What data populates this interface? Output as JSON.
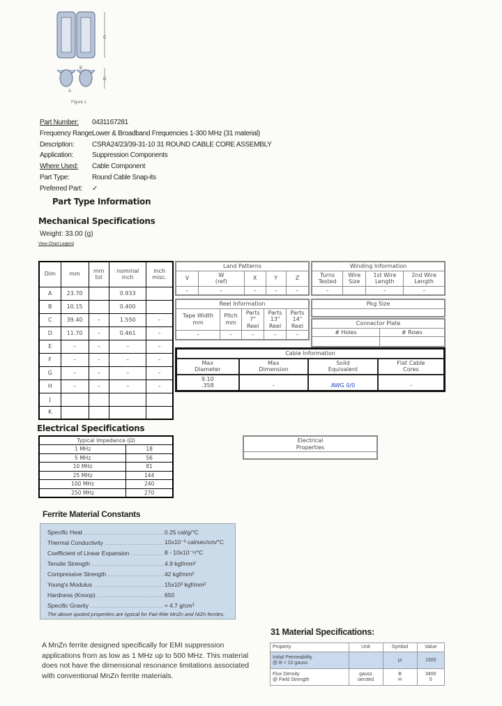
{
  "figure": {
    "caption": "Figure 1",
    "labels": [
      "C",
      "D",
      "B",
      "A"
    ]
  },
  "part_info": [
    {
      "label": "Part Number:",
      "value": "0431167281",
      "underline": true
    },
    {
      "label": "Frequency Range:",
      "value": "Lower & Broadband Frequencies 1-300 MHz (31 material)"
    },
    {
      "label": "Description:",
      "value": "CSRA24/23/39-31-10     31 ROUND CABLE CORE ASSEMBLY"
    },
    {
      "label": "Application:",
      "value": "Suppression Components"
    },
    {
      "label": "Where Used:",
      "value": "Cable Component",
      "underline": true
    },
    {
      "label": "Part Type:",
      "value": "Round Cable Snap-its"
    },
    {
      "label": "Preferred Part:",
      "value": "✓"
    }
  ],
  "part_type_heading": "Part Type Information",
  "mechanical": {
    "heading": "Mechanical Specifications",
    "weight": "Weight: 33.00 (g)",
    "legend_link": "View Chart Legend"
  },
  "dim_table": {
    "headers": [
      "Dim",
      "mm",
      "mm\ntol",
      "nominal\ninch",
      "inch\nmisc."
    ],
    "rows": [
      [
        "A",
        "23.70",
        "",
        "0.933",
        ""
      ],
      [
        "B",
        "10.15",
        "",
        "0.400",
        ""
      ],
      [
        "C",
        "39.40",
        "–",
        "1.550",
        "–"
      ],
      [
        "D",
        "11.70",
        "–",
        "0.461",
        "–"
      ],
      [
        "E",
        "–",
        "–",
        "–",
        "–"
      ],
      [
        "F",
        "–",
        "–",
        "–",
        "–"
      ],
      [
        "G",
        "–",
        "–",
        "–",
        "–"
      ],
      [
        "H",
        "–",
        "–",
        "–",
        "–"
      ],
      [
        "J",
        "",
        "",
        "",
        ""
      ],
      [
        "K",
        "",
        "",
        "",
        ""
      ]
    ]
  },
  "land_patterns": {
    "title": "Land Patterns",
    "headers": [
      "V",
      "W\n(ref)",
      "X",
      "Y",
      "Z"
    ],
    "row": [
      "–",
      "–",
      "–",
      "–",
      "–"
    ]
  },
  "winding": {
    "title": "Winding Information",
    "headers": [
      "Turns\nTested",
      "Wire\nSize",
      "1st Wire\nLength",
      "2nd Wire\nLength"
    ],
    "row": [
      "–",
      "",
      "–",
      "–"
    ]
  },
  "reel": {
    "title": "Reel Information",
    "headers": [
      "Tape Width\nmm",
      "Pitch\nmm",
      "Parts\n7\"\nReel",
      "Parts\n13\"\nReel",
      "Parts\n14\"\nReel"
    ],
    "row": [
      "–",
      "–",
      "–",
      "–",
      "–"
    ]
  },
  "pkg": {
    "title": "Pkg Size"
  },
  "connector": {
    "title": "Connector Plate",
    "headers": [
      "# Holes",
      "# Rows"
    ]
  },
  "cable": {
    "title": "Cable Information",
    "headers": [
      "Max\nDiameter",
      "Max\nDimension",
      "Solid\nEquivalent",
      "Flat Cable\nCores"
    ],
    "row": [
      "9.10\n.358",
      "–",
      "AWG 0/0",
      "–"
    ]
  },
  "electrical": {
    "heading": "Electrical Specifications",
    "impedance_title": "Typical Impedance (Ω)",
    "rows": [
      [
        "1 MHz",
        "18"
      ],
      [
        "5 MHz",
        "56"
      ],
      [
        "10 MHz",
        "81"
      ],
      [
        "25 MHz",
        "144"
      ],
      [
        "100 MHz",
        "240"
      ],
      [
        "250 MHz",
        "270"
      ]
    ],
    "properties_title": "Electrical\nProperties"
  },
  "ferrite": {
    "heading": "Ferrite Material Constants",
    "rows": [
      [
        "Specific Heat",
        "0.25 cal/g/°C"
      ],
      [
        "Thermal Conductivity",
        "10x10⁻³ cal/sec/cm/°C"
      ],
      [
        "Coefficient of Linear Expansion",
        "8 - 10x10⁻⁶/°C"
      ],
      [
        "Tensile Strength",
        "4.9 kgf/mm²"
      ],
      [
        "Compressive Strength",
        "42 kgf/mm²"
      ],
      [
        "Young's Modulus",
        "15x10³ kgf/mm²"
      ],
      [
        "Hardness (Knoop)",
        "650"
      ],
      [
        "Specific Gravity",
        "≈ 4.7 g/cm³"
      ]
    ],
    "note": "The above quoted properties are typical for Fair-Rite MnZn and NiZn ferrites."
  },
  "description_text": "A MnZn ferrite designed specifically for EMI suppression applications from as low as 1 MHz up to 500 MHz. This material does not have the dimensional resonance limitations associated with conventional MnZn ferrite materials.",
  "material": {
    "heading": "31 Material Specifications:",
    "headers": [
      "Property",
      "Unit",
      "Symbol",
      "Value"
    ],
    "rows": [
      [
        "Initial Permeability\n@ B < 10 gauss",
        "",
        "μi",
        "1500"
      ],
      [
        "Flux Density\n@ Field Strength",
        "gauss\noersted",
        "B\nH",
        "3400\n5"
      ]
    ]
  }
}
